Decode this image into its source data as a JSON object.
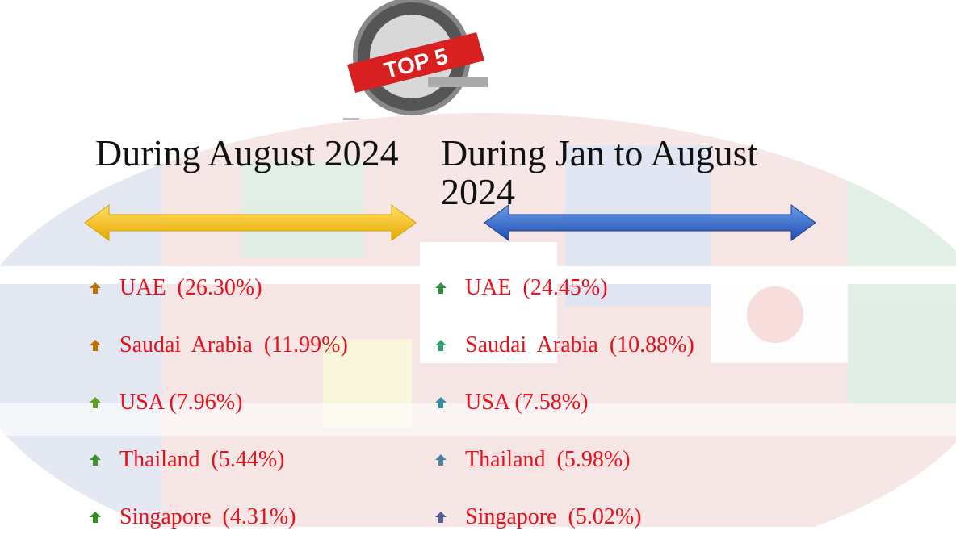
{
  "badge": {
    "text": "TOP 5"
  },
  "columns": [
    {
      "heading": "During August 2024",
      "items": [
        "UAE  (26.30%)",
        "Saudai  Arabia  (11.99%)",
        "USA (7.96%)",
        "Thailand  (5.44%)",
        "Singapore  (4.31%)"
      ]
    },
    {
      "heading": "During Jan to August 2024",
      "items": [
        "UAE  (24.45%)",
        "Saudai  Arabia  (10.88%)",
        "USA (7.58%)",
        "Thailand  (5.98%)",
        "Singapore  (5.02%)"
      ]
    }
  ]
}
